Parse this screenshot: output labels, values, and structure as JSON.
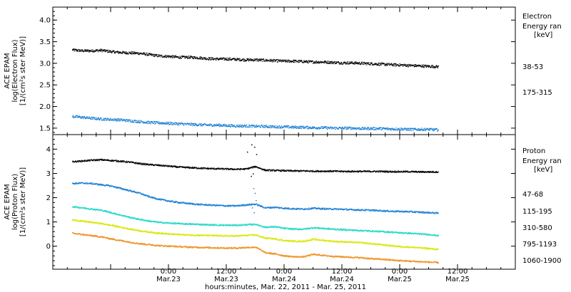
{
  "chart_data": [
    {
      "type": "scatter",
      "panel": "electron",
      "ylabel_lines": [
        "ACE EPAM",
        "log(Electron Flux)",
        "[1/(cm²s ster MeV)]"
      ],
      "ylim": [
        1.35,
        4.3
      ],
      "yticks": [
        "1.5",
        "2.0",
        "2.5",
        "3.0",
        "3.5",
        "4.0"
      ],
      "ytick_values": [
        1.5,
        2.0,
        2.5,
        3.0,
        3.5,
        4.0
      ],
      "legend_title": [
        "Electron",
        "Energy ran",
        "[keV]"
      ],
      "series": [
        {
          "name": "38-53",
          "color": "#000000",
          "x": [
            -20,
            -18,
            -16,
            -14,
            -12,
            -10,
            -8,
            -6,
            -4,
            -2,
            0,
            2,
            4,
            6,
            8,
            10,
            12,
            14,
            16,
            18,
            20,
            22,
            24,
            26,
            28,
            30,
            32,
            34,
            36,
            38,
            40,
            42,
            44,
            46,
            48,
            50,
            52,
            54,
            56
          ],
          "values": [
            3.32,
            3.3,
            3.3,
            3.31,
            3.28,
            3.26,
            3.25,
            3.24,
            3.21,
            3.18,
            3.17,
            3.15,
            3.15,
            3.14,
            3.12,
            3.11,
            3.11,
            3.1,
            3.09,
            3.09,
            3.08,
            3.07,
            3.06,
            3.06,
            3.05,
            3.04,
            3.04,
            3.03,
            3.02,
            3.02,
            3.01,
            3.0,
            2.99,
            2.98,
            2.97,
            2.96,
            2.95,
            2.94,
            2.93
          ]
        },
        {
          "name": "175-315",
          "color": "#1a7fd4",
          "x": [
            -20,
            -18,
            -16,
            -14,
            -12,
            -10,
            -8,
            -6,
            -4,
            -2,
            0,
            2,
            4,
            6,
            8,
            10,
            12,
            14,
            16,
            18,
            20,
            22,
            24,
            26,
            28,
            30,
            32,
            34,
            36,
            38,
            40,
            42,
            44,
            46,
            48,
            50,
            52,
            54,
            56
          ],
          "values": [
            1.78,
            1.76,
            1.74,
            1.72,
            1.71,
            1.7,
            1.68,
            1.66,
            1.64,
            1.63,
            1.62,
            1.61,
            1.6,
            1.59,
            1.58,
            1.58,
            1.57,
            1.56,
            1.56,
            1.55,
            1.55,
            1.54,
            1.54,
            1.53,
            1.53,
            1.52,
            1.52,
            1.51,
            1.51,
            1.51,
            1.5,
            1.5,
            1.5,
            1.49,
            1.49,
            1.48,
            1.48,
            1.48,
            1.47
          ]
        }
      ]
    },
    {
      "type": "scatter",
      "panel": "proton",
      "ylabel_lines": [
        "ACE EPAM",
        "log(Proton Flux)",
        "[1/(cm²s ster MeV)]"
      ],
      "ylim": [
        -0.95,
        4.6
      ],
      "yticks": [
        "0",
        "1",
        "2",
        "3",
        "4"
      ],
      "ytick_values": [
        0,
        1,
        2,
        3,
        4
      ],
      "legend_title": [
        "Proton",
        "Energy ran",
        "[keV]"
      ],
      "series": [
        {
          "name": "47-68",
          "color": "#000000",
          "x": [
            -20,
            -18,
            -16,
            -14,
            -12,
            -10,
            -8,
            -6,
            -4,
            -2,
            0,
            2,
            4,
            6,
            8,
            10,
            12,
            14,
            16,
            18,
            20,
            22,
            24,
            26,
            28,
            30,
            32,
            34,
            36,
            38,
            40,
            42,
            44,
            46,
            48,
            50,
            52,
            54,
            56
          ],
          "values": [
            3.5,
            3.53,
            3.56,
            3.58,
            3.55,
            3.52,
            3.48,
            3.42,
            3.38,
            3.35,
            3.32,
            3.28,
            3.26,
            3.24,
            3.22,
            3.21,
            3.2,
            3.19,
            3.2,
            3.3,
            3.15,
            3.14,
            3.13,
            3.12,
            3.12,
            3.11,
            3.11,
            3.11,
            3.1,
            3.1,
            3.1,
            3.1,
            3.1,
            3.09,
            3.09,
            3.09,
            3.08,
            3.08,
            3.08
          ]
        },
        {
          "name": "115-195",
          "color": "#1a7fd4",
          "x": [
            -20,
            -18,
            -16,
            -14,
            -12,
            -10,
            -8,
            -6,
            -4,
            -2,
            0,
            2,
            4,
            6,
            8,
            10,
            12,
            14,
            16,
            18,
            20,
            22,
            24,
            26,
            28,
            30,
            32,
            34,
            36,
            38,
            40,
            42,
            44,
            46,
            48,
            50,
            52,
            54,
            56
          ],
          "values": [
            2.6,
            2.62,
            2.6,
            2.55,
            2.5,
            2.4,
            2.3,
            2.2,
            2.05,
            1.95,
            1.88,
            1.82,
            1.78,
            1.74,
            1.72,
            1.7,
            1.68,
            1.68,
            1.72,
            1.75,
            1.6,
            1.62,
            1.58,
            1.56,
            1.55,
            1.58,
            1.56,
            1.55,
            1.54,
            1.52,
            1.51,
            1.5,
            1.48,
            1.46,
            1.45,
            1.44,
            1.42,
            1.4,
            1.38
          ]
        },
        {
          "name": "310-580",
          "color": "#20d8c8",
          "x": [
            -20,
            -18,
            -16,
            -14,
            -12,
            -10,
            -8,
            -6,
            -4,
            -2,
            0,
            2,
            4,
            6,
            8,
            10,
            12,
            14,
            16,
            18,
            20,
            22,
            24,
            26,
            28,
            30,
            32,
            34,
            36,
            38,
            40,
            42,
            44,
            46,
            48,
            50,
            52,
            54,
            56
          ],
          "values": [
            1.65,
            1.6,
            1.55,
            1.5,
            1.4,
            1.3,
            1.2,
            1.12,
            1.05,
            1.0,
            0.97,
            0.95,
            0.93,
            0.92,
            0.9,
            0.89,
            0.88,
            0.88,
            0.9,
            0.92,
            0.8,
            0.82,
            0.75,
            0.72,
            0.72,
            0.78,
            0.75,
            0.72,
            0.7,
            0.68,
            0.66,
            0.64,
            0.62,
            0.6,
            0.57,
            0.55,
            0.52,
            0.5,
            0.45
          ]
        },
        {
          "name": "795-1193",
          "color": "#d8e808",
          "x": [
            -20,
            -18,
            -16,
            -14,
            -12,
            -10,
            -8,
            -6,
            -4,
            -2,
            0,
            2,
            4,
            6,
            8,
            10,
            12,
            14,
            16,
            18,
            20,
            22,
            24,
            26,
            28,
            30,
            32,
            34,
            36,
            38,
            40,
            42,
            44,
            46,
            48,
            50,
            52,
            54,
            56
          ],
          "values": [
            1.1,
            1.05,
            1.0,
            0.95,
            0.88,
            0.8,
            0.72,
            0.65,
            0.6,
            0.55,
            0.52,
            0.5,
            0.48,
            0.47,
            0.46,
            0.45,
            0.44,
            0.44,
            0.46,
            0.48,
            0.35,
            0.32,
            0.25,
            0.22,
            0.22,
            0.3,
            0.26,
            0.22,
            0.2,
            0.18,
            0.16,
            0.12,
            0.08,
            0.04,
            0.0,
            -0.02,
            -0.05,
            -0.08,
            -0.12
          ]
        },
        {
          "name": "1060-1900",
          "color": "#f09020",
          "x": [
            -20,
            -18,
            -16,
            -14,
            -12,
            -10,
            -8,
            -6,
            -4,
            -2,
            0,
            2,
            4,
            6,
            8,
            10,
            12,
            14,
            16,
            18,
            20,
            22,
            24,
            26,
            28,
            30,
            32,
            34,
            36,
            38,
            40,
            42,
            44,
            46,
            48,
            50,
            52,
            54,
            56
          ],
          "values": [
            0.55,
            0.5,
            0.45,
            0.4,
            0.32,
            0.25,
            0.18,
            0.12,
            0.08,
            0.04,
            0.02,
            0.0,
            -0.02,
            -0.03,
            -0.04,
            -0.05,
            -0.06,
            -0.06,
            -0.04,
            -0.02,
            -0.25,
            -0.3,
            -0.38,
            -0.42,
            -0.42,
            -0.32,
            -0.36,
            -0.4,
            -0.42,
            -0.44,
            -0.46,
            -0.5,
            -0.52,
            -0.55,
            -0.58,
            -0.6,
            -0.62,
            -0.64,
            -0.66
          ]
        }
      ]
    }
  ],
  "xaxis": {
    "range_hours": [
      -24,
      72
    ],
    "ticks": [
      {
        "h": 0,
        "time": "0:00",
        "date": "Mar.23"
      },
      {
        "h": 12,
        "time": "12:00",
        "date": "Mar.23"
      },
      {
        "h": 24,
        "time": "0:00",
        "date": "Mar.24"
      },
      {
        "h": 36,
        "time": "12:00",
        "date": "Mar.24"
      },
      {
        "h": 48,
        "time": "0:00",
        "date": "Mar.25"
      },
      {
        "h": 60,
        "time": "12:00",
        "date": "Mar.25"
      }
    ],
    "minor_every": 3,
    "label": "hours:minutes, Mar. 22, 2011 - Mar. 25, 2011"
  }
}
